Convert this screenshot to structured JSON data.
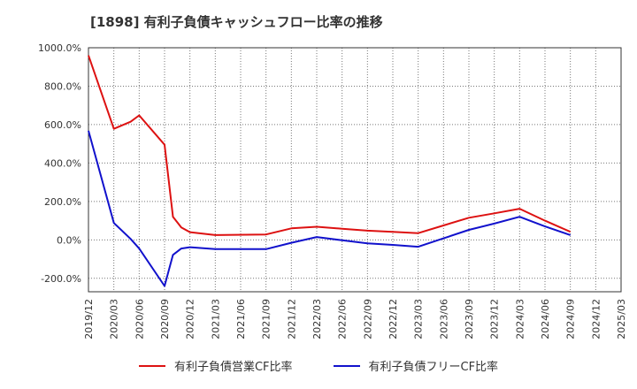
{
  "chart_data": {
    "type": "line",
    "title": "[1898]  有利子負債キャッシュフロー比率の推移",
    "xlabel": "",
    "ylabel": "",
    "ylim": [
      -270,
      1000
    ],
    "y_ticks": [
      "1000.0%",
      "800.0%",
      "600.0%",
      "400.0%",
      "200.0%",
      "0.0%",
      "-200.0%"
    ],
    "y_tick_values": [
      1000,
      800,
      600,
      400,
      200,
      0,
      -200
    ],
    "x_ticks": [
      "2019/12",
      "2020/03",
      "2020/06",
      "2020/09",
      "2020/12",
      "2021/03",
      "2021/06",
      "2021/09",
      "2021/12",
      "2022/03",
      "2022/06",
      "2022/09",
      "2022/12",
      "2023/03",
      "2023/06",
      "2023/09",
      "2023/12",
      "2024/03",
      "2024/06",
      "2024/09",
      "2024/12",
      "2025/03"
    ],
    "grid": true,
    "legend_position": "bottom",
    "series": [
      {
        "name": "有利子負債営業CF比率",
        "color": "#dd1111",
        "x": [
          0,
          1,
          1.66,
          2,
          3,
          3.33,
          3.66,
          4,
          5,
          7,
          8,
          9,
          10,
          11,
          12,
          13,
          14,
          15,
          16,
          17,
          18,
          19
        ],
        "values": [
          960,
          578,
          615,
          648,
          495,
          120,
          65,
          40,
          25,
          28,
          60,
          68,
          58,
          48,
          42,
          35,
          75,
          115,
          138,
          162,
          100,
          42
        ]
      },
      {
        "name": "有利子負債フリーCF比率",
        "color": "#1111cc",
        "x": [
          0,
          1,
          1.66,
          2,
          3,
          3.33,
          3.66,
          4,
          5,
          7,
          8,
          9,
          10,
          11,
          12,
          13,
          14,
          15,
          16,
          17,
          18,
          19
        ],
        "values": [
          568,
          88,
          5,
          -45,
          -240,
          -78,
          -45,
          -38,
          -48,
          -48,
          -15,
          15,
          -2,
          -18,
          -26,
          -36,
          8,
          52,
          85,
          120,
          70,
          25
        ]
      }
    ]
  }
}
